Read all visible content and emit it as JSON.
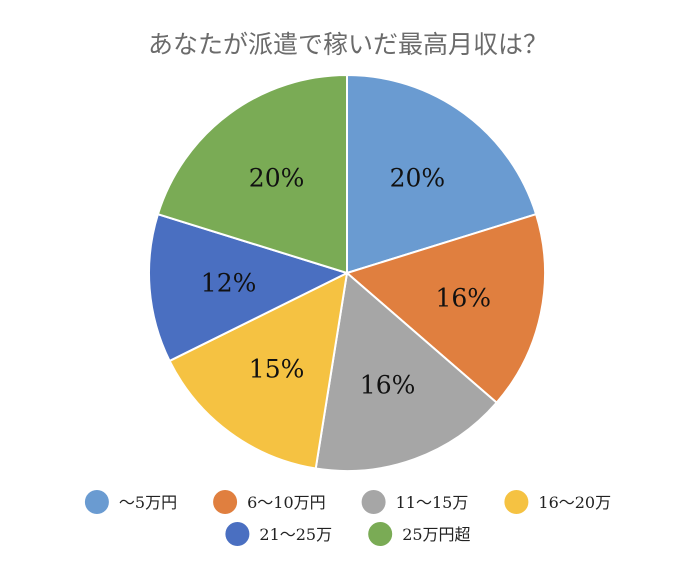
{
  "chart_data": {
    "type": "pie",
    "title": "あなたが派遣で稼いだ最高月収は？",
    "categories": [
      "～5万円",
      "6～10万円",
      "11～15万",
      "16～20万",
      "21～25万",
      "25万円超"
    ],
    "values": [
      20,
      16,
      16,
      15,
      12,
      20
    ],
    "value_labels": [
      "20%",
      "16%",
      "16%",
      "15%",
      "12%",
      "20%"
    ],
    "colors": [
      "#6a9bd1",
      "#e07f3f",
      "#a6a6a6",
      "#f5c242",
      "#4a6fc1",
      "#7aab55"
    ],
    "start": "12 o'clock",
    "direction": "clockwise",
    "legend": "bottom"
  }
}
